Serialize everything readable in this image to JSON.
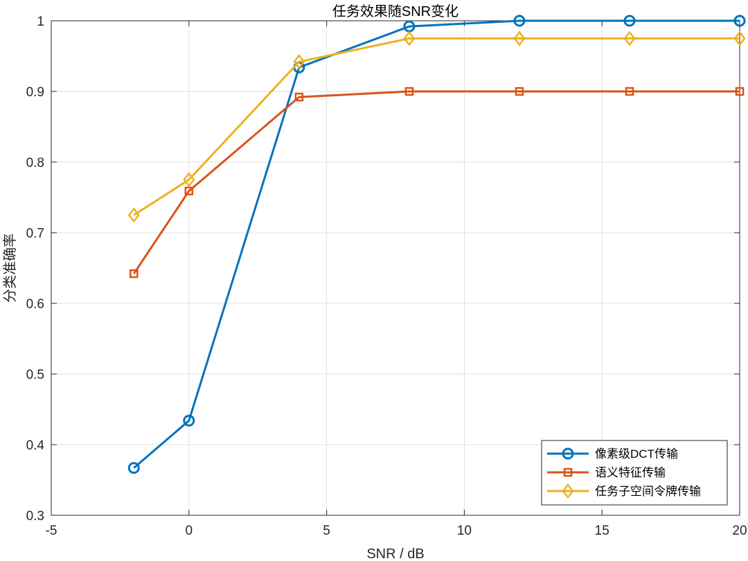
{
  "chart_data": {
    "type": "line",
    "title": "任务效果随SNR变化",
    "xlabel": "SNR / dB",
    "ylabel": "分类准确率",
    "xlim": [
      -5,
      20
    ],
    "ylim": [
      0.3,
      1
    ],
    "xticks": [
      -5,
      0,
      5,
      10,
      15,
      20
    ],
    "yticks": [
      0.3,
      0.4,
      0.5,
      0.6,
      0.7,
      0.8,
      0.9,
      1
    ],
    "xtick_labels": [
      "-5",
      "0",
      "5",
      "10",
      "15",
      "20"
    ],
    "ytick_labels": [
      "0.3",
      "0.4",
      "0.5",
      "0.6",
      "0.7",
      "0.8",
      "0.9",
      "1"
    ],
    "grid": true,
    "legend_position": "bottom-right",
    "x": [
      -2,
      0,
      4,
      8,
      12,
      16,
      20
    ],
    "series": [
      {
        "name": "像素级DCT传输",
        "marker": "circle",
        "color": "#0072BD",
        "values": [
          0.367,
          0.434,
          0.934,
          0.992,
          1.0,
          1.0,
          1.0
        ]
      },
      {
        "name": "语义特征传输",
        "marker": "square",
        "color": "#D95319",
        "values": [
          0.642,
          0.759,
          0.892,
          0.9,
          0.9,
          0.9,
          0.9
        ]
      },
      {
        "name": "任务子空间令牌传输",
        "marker": "diamond",
        "color": "#EDB120",
        "values": [
          0.725,
          0.775,
          0.942,
          0.975,
          0.975,
          0.975,
          0.975
        ]
      }
    ]
  }
}
